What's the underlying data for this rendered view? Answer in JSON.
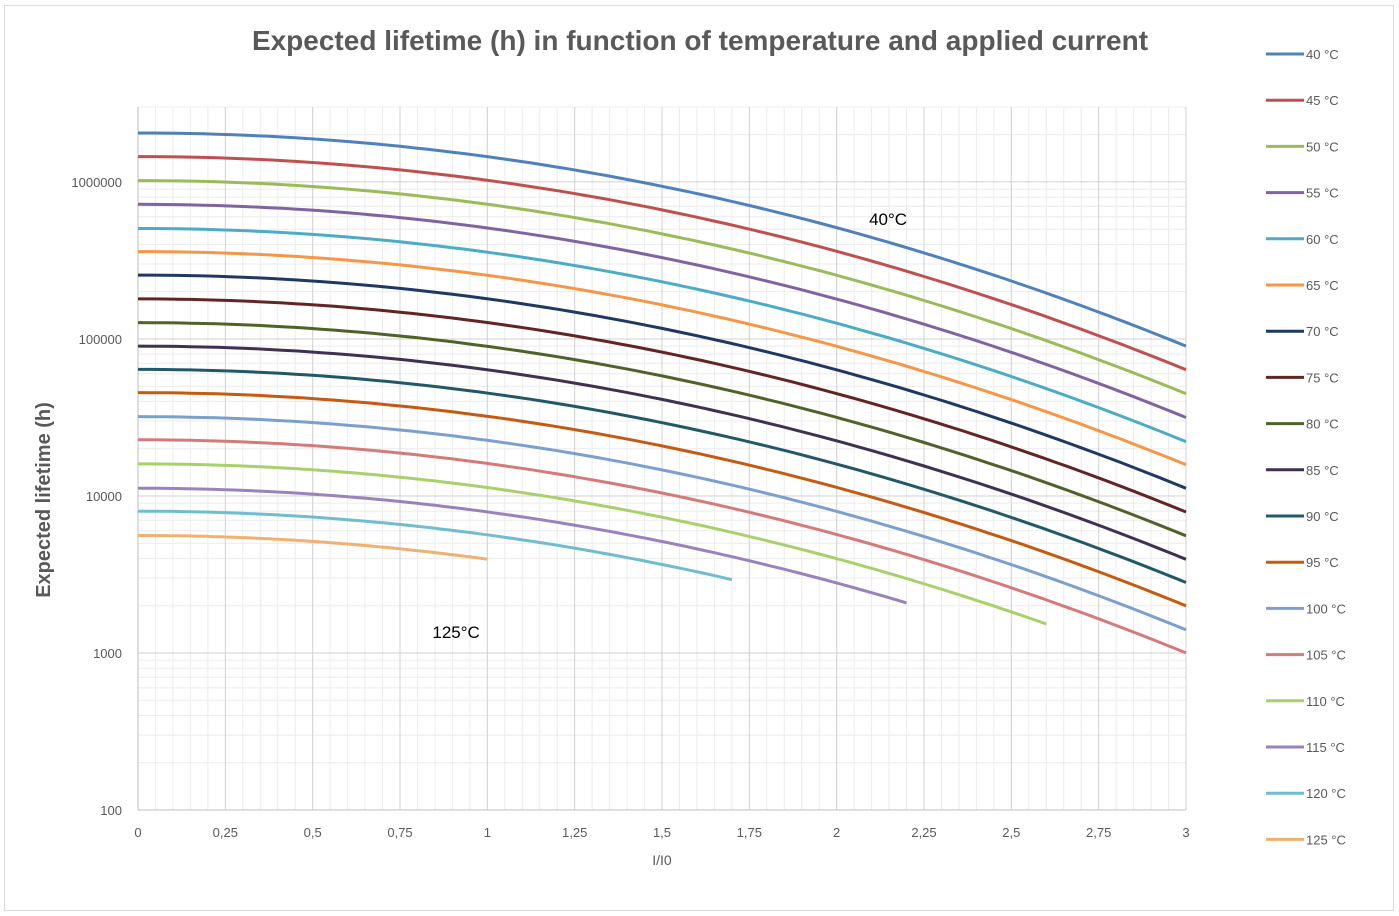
{
  "chart_data": {
    "type": "line",
    "title": "Expected  lifetime (h) in function of temperature and applied current",
    "xlabel": "I/I0",
    "ylabel": "Expected  lifetime (h)",
    "xlim": [
      0,
      3
    ],
    "ylim": [
      100,
      3000000
    ],
    "yscale": "log",
    "grid": true,
    "legend_position": "right",
    "x_ticks": [
      "0",
      "0,25",
      "0,5",
      "0,75",
      "1",
      "1,25",
      "1,5",
      "1,75",
      "2",
      "2,25",
      "2,5",
      "2,75",
      "3"
    ],
    "y_ticks": [
      "100",
      "1000",
      "10000",
      "100000",
      "1000000"
    ],
    "annotations": [
      {
        "text": "40°C",
        "x": 2.15,
        "y": 530000
      },
      {
        "text": "125°C",
        "x": 0.9,
        "y": 1250
      }
    ],
    "series": [
      {
        "name": "40 °C",
        "color": "#4f81bd",
        "y0": 2050000,
        "x_end": 3
      },
      {
        "name": "45 °C",
        "color": "#c0504d",
        "y0": 1450000,
        "x_end": 3
      },
      {
        "name": "50 °C",
        "color": "#9bbb59",
        "y0": 1020000,
        "x_end": 3
      },
      {
        "name": "55 °C",
        "color": "#8064a2",
        "y0": 720000,
        "x_end": 3
      },
      {
        "name": "60 °C",
        "color": "#4bacc6",
        "y0": 505000,
        "x_end": 3
      },
      {
        "name": "65 °C",
        "color": "#f79646",
        "y0": 360000,
        "x_end": 3
      },
      {
        "name": "70 °C",
        "color": "#1f3864",
        "y0": 255000,
        "x_end": 3
      },
      {
        "name": "75 °C",
        "color": "#632523",
        "y0": 180000,
        "x_end": 3
      },
      {
        "name": "80 °C",
        "color": "#4f6228",
        "y0": 127000,
        "x_end": 3
      },
      {
        "name": "85 °C",
        "color": "#3f3151",
        "y0": 90000,
        "x_end": 3
      },
      {
        "name": "90 °C",
        "color": "#215968",
        "y0": 64000,
        "x_end": 3
      },
      {
        "name": "95 °C",
        "color": "#c55a11",
        "y0": 45500,
        "x_end": 3
      },
      {
        "name": "100 °C",
        "color": "#7ba0cd",
        "y0": 32000,
        "x_end": 3
      },
      {
        "name": "105 °C",
        "color": "#d47a79",
        "y0": 22800,
        "x_end": 3
      },
      {
        "name": "110 °C",
        "color": "#a9d16b",
        "y0": 16000,
        "x_end": 2.6
      },
      {
        "name": "115 °C",
        "color": "#9a83bd",
        "y0": 11200,
        "x_end": 2.2
      },
      {
        "name": "120 °C",
        "color": "#6fbdcf",
        "y0": 8000,
        "x_end": 1.7
      },
      {
        "name": "125 °C",
        "color": "#f0b070",
        "y0": 5600,
        "x_end": 1
      }
    ]
  }
}
